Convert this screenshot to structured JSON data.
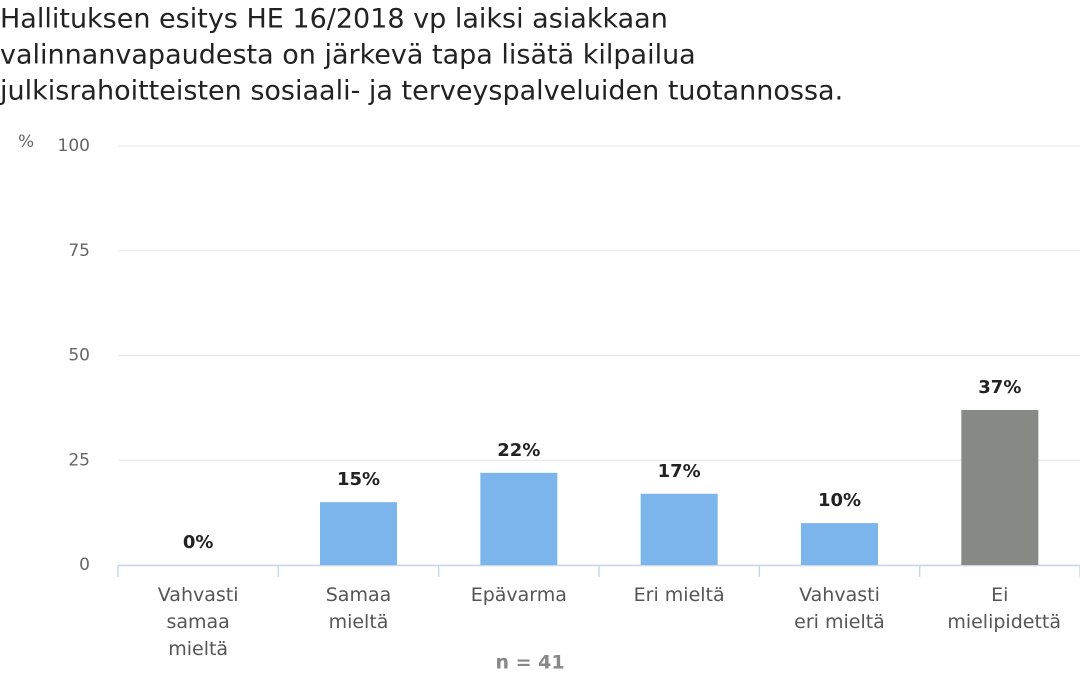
{
  "chart_data": {
    "type": "bar",
    "title": [
      "Hallituksen esitys HE 16/2018 vp laiksi asiakkaan",
      "valinnanvapaudesta on järkevä tapa lisätä kilpailua",
      "julkisrahoitteisten sosiaali- ja terveyspalveluiden tuotannossa."
    ],
    "y_label": "%",
    "categories": [
      "Vahvasti samaa mieltä",
      "Samaa mieltä",
      "Epävarma",
      "Eri mieltä",
      "Vahvasti eri mieltä",
      "Ei mielipidettä"
    ],
    "values": [
      0,
      15,
      22,
      17,
      10,
      37
    ],
    "value_labels": [
      "0%",
      "15%",
      "22%",
      "17%",
      "10%",
      "37%"
    ],
    "colors": [
      "#7cb5ec",
      "#7cb5ec",
      "#7cb5ec",
      "#7cb5ec",
      "#7cb5ec",
      "#878a84"
    ],
    "ylim": [
      0,
      100
    ],
    "yticks": [
      0,
      25,
      50,
      75,
      100
    ],
    "grid": true,
    "annotation": "n = 41"
  }
}
